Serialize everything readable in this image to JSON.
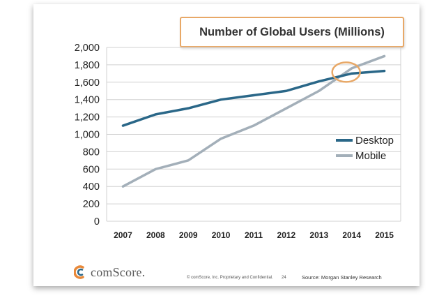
{
  "chart_data": {
    "type": "line",
    "title": "Number of Global Users (Millions)",
    "xlabel": "",
    "ylabel": "",
    "categories": [
      "2007",
      "2008",
      "2009",
      "2010",
      "2011",
      "2012",
      "2013",
      "2014",
      "2015"
    ],
    "ylim": [
      0,
      2000
    ],
    "yticks": [
      0,
      200,
      400,
      600,
      800,
      1000,
      1200,
      1400,
      1600,
      1800,
      2000
    ],
    "ytick_labels": [
      "0",
      "200",
      "400",
      "600",
      "800",
      "1,000",
      "1,200",
      "1,400",
      "1,600",
      "1,800",
      "2,000"
    ],
    "grid": true,
    "legend_position": "right",
    "series": [
      {
        "name": "Desktop",
        "color": "#2a6788",
        "values": [
          1100,
          1230,
          1300,
          1400,
          1450,
          1500,
          1610,
          1700,
          1730
        ]
      },
      {
        "name": "Mobile",
        "color": "#a3afb9",
        "values": [
          400,
          600,
          700,
          950,
          1100,
          1300,
          1500,
          1760,
          1900
        ]
      }
    ],
    "highlight": {
      "label": "crossover",
      "x": "2014",
      "y": 1700,
      "color": "#e8a867"
    }
  },
  "footer": {
    "logo_text": "comScore.",
    "copyright": "© comScore, Inc.  Proprietary and Confidential.",
    "page_number": "24",
    "source": "Source: Morgan Stanley Research"
  }
}
